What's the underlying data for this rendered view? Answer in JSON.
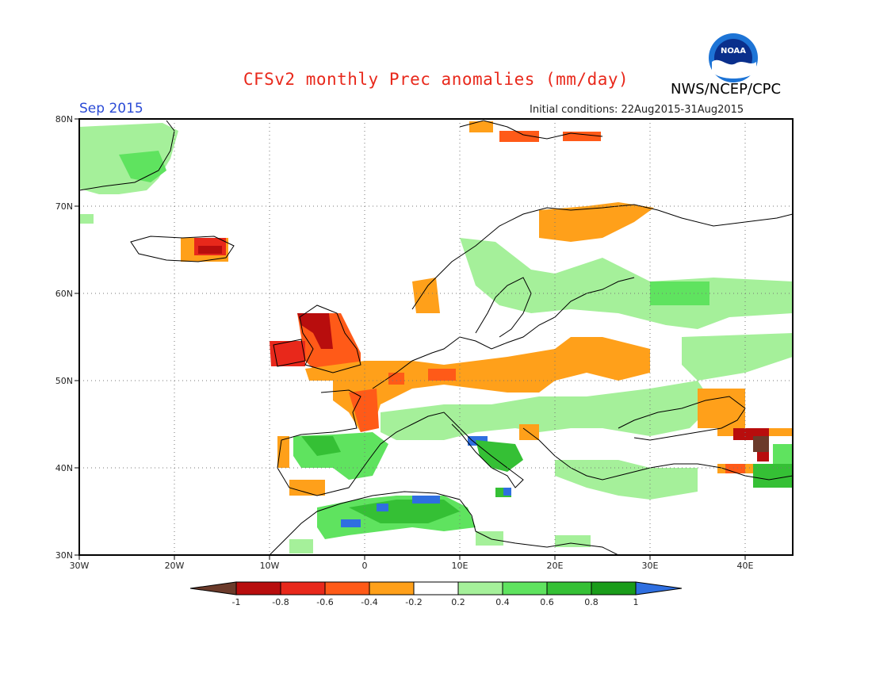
{
  "header": {
    "title": "CFSv2 monthly Prec anomalies (mm/day)",
    "org": "NWS/NCEP/CPC",
    "logo_text": "NOAA",
    "valid_month": "Sep 2015",
    "init_conditions": "Initial conditions: 22Aug2015-31Aug2015"
  },
  "map": {
    "lon_labels": [
      "30W",
      "20W",
      "10W",
      "0",
      "10E",
      "20E",
      "30E",
      "40E"
    ],
    "lat_labels": [
      "80N",
      "70N",
      "60N",
      "50N",
      "40N",
      "30N"
    ]
  },
  "colorbar": {
    "labels": [
      "-1",
      "-0.8",
      "-0.6",
      "-0.4",
      "-0.2",
      "0.2",
      "0.4",
      "0.6",
      "0.8",
      "1"
    ],
    "colors": {
      "below_min": "#6b3a2a",
      "m1_m08": "#b80d0d",
      "m08_m06": "#e8281b",
      "m06_m04": "#ff5a18",
      "m04_m02": "#ffa01a",
      "neutral": "#ffffff",
      "p02_p04": "#a5f09a",
      "p04_p06": "#5fe35f",
      "p06_p08": "#35c035",
      "p08_p1": "#1a9c1a",
      "above_max": "#2f6fe0"
    }
  }
}
